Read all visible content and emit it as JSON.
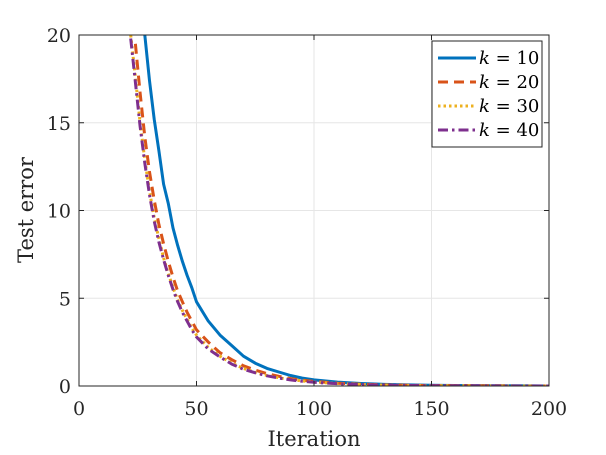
{
  "chart_data": {
    "type": "line",
    "title": "",
    "xlabel": "Iteration",
    "ylabel": "Test error",
    "xlim": [
      0,
      200
    ],
    "ylim": [
      0,
      20
    ],
    "xticks": [
      0,
      50,
      100,
      150,
      200
    ],
    "yticks": [
      0,
      5,
      10,
      15,
      20
    ],
    "grid": true,
    "legend_position": "top-right",
    "x": [
      22,
      24,
      26,
      28,
      30,
      32,
      34,
      36,
      38,
      40,
      42,
      44,
      46,
      48,
      50,
      55,
      60,
      65,
      70,
      75,
      80,
      85,
      90,
      95,
      100,
      110,
      120,
      130,
      140,
      150,
      160,
      170,
      180,
      190,
      200
    ],
    "series": [
      {
        "name": "k = 10",
        "legend_var": "k",
        "legend_rest": " = 10",
        "color": "#0072BD",
        "dash": "solid",
        "values": [
          null,
          null,
          null,
          20.0,
          17.4,
          15.2,
          13.4,
          11.5,
          10.4,
          9.0,
          8.0,
          7.1,
          6.3,
          5.6,
          4.8,
          3.7,
          2.9,
          2.3,
          1.7,
          1.3,
          1.0,
          0.8,
          0.6,
          0.45,
          0.35,
          0.22,
          0.14,
          0.09,
          0.06,
          0.04,
          0.03,
          0.02,
          0.01,
          0.01,
          0.0
        ]
      },
      {
        "name": "k = 20",
        "legend_var": "k",
        "legend_rest": " = 20",
        "color": "#D95319",
        "dash": "dashed",
        "values": [
          null,
          19.5,
          16.7,
          14.2,
          12.2,
          10.6,
          9.2,
          8.1,
          7.1,
          6.2,
          5.4,
          4.8,
          4.2,
          3.7,
          3.2,
          2.5,
          1.9,
          1.5,
          1.15,
          0.9,
          0.7,
          0.55,
          0.42,
          0.33,
          0.26,
          0.16,
          0.1,
          0.06,
          0.04,
          0.03,
          0.02,
          0.01,
          0.01,
          0.0,
          0.0
        ]
      },
      {
        "name": "k = 30",
        "legend_var": "k",
        "legend_rest": " = 30",
        "color": "#EDB120",
        "dash": "dotted",
        "values": [
          20.0,
          17.6,
          15.0,
          12.9,
          11.1,
          9.6,
          8.4,
          7.3,
          6.4,
          5.6,
          4.9,
          4.3,
          3.8,
          3.3,
          2.9,
          2.2,
          1.7,
          1.3,
          1.0,
          0.78,
          0.6,
          0.47,
          0.37,
          0.29,
          0.22,
          0.14,
          0.09,
          0.05,
          0.03,
          0.02,
          0.01,
          0.01,
          0.0,
          0.0,
          0.0
        ]
      },
      {
        "name": "k = 40",
        "legend_var": "k",
        "legend_rest": " = 40",
        "color": "#7E2F8E",
        "dash": "dashdot",
        "values": [
          19.8,
          17.3,
          14.8,
          12.7,
          10.9,
          9.4,
          8.2,
          7.2,
          6.3,
          5.5,
          4.8,
          4.2,
          3.7,
          3.2,
          2.8,
          2.1,
          1.65,
          1.25,
          0.95,
          0.75,
          0.58,
          0.45,
          0.35,
          0.27,
          0.21,
          0.13,
          0.08,
          0.05,
          0.03,
          0.02,
          0.01,
          0.01,
          0.0,
          0.0,
          0.0
        ]
      }
    ]
  }
}
